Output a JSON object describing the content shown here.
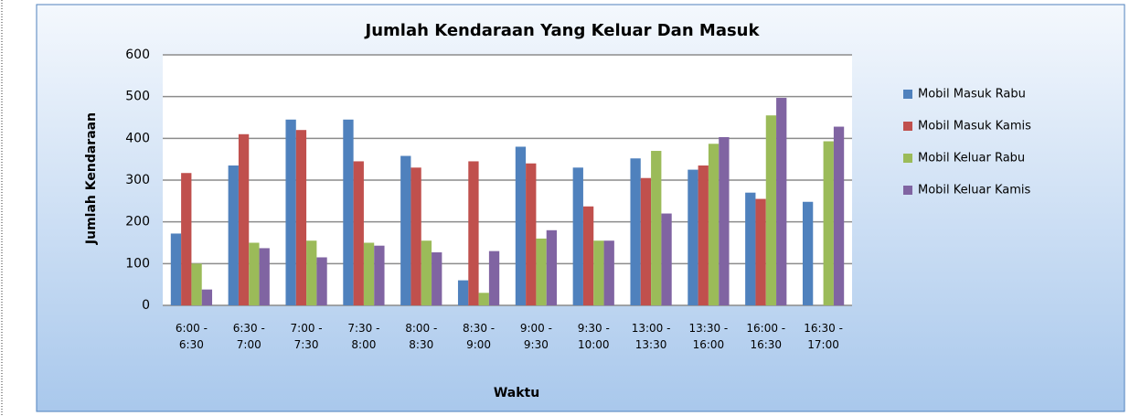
{
  "chart_data": {
    "type": "bar",
    "title": "Jumlah Kendaraan Yang Keluar Dan Masuk",
    "x_label": "Waktu",
    "y_label": "Jumlah Kendaraan",
    "categories": [
      "6:00 - 6:30",
      "6:30 - 7:00",
      "7:00 - 7:30",
      "7:30 - 8:00",
      "8:00 - 8:30",
      "8:30 - 9:00",
      "9:00 - 9:30",
      "9:30 - 10:00",
      "13:00 - 13:30",
      "13:30 - 16:00",
      "16:00 - 16:30",
      "16:30 - 17:00"
    ],
    "series": [
      {
        "name": "Mobil Masuk Rabu",
        "color": "#4f81bd",
        "values": [
          172,
          335,
          445,
          445,
          358,
          60,
          380,
          330,
          352,
          325,
          270,
          248
        ]
      },
      {
        "name": "Mobil Masuk Kamis",
        "color": "#c0504d",
        "values": [
          317,
          410,
          420,
          345,
          330,
          345,
          340,
          237,
          305,
          335,
          255,
          null
        ]
      },
      {
        "name": "Mobil Keluar Rabu",
        "color": "#9bbb59",
        "values": [
          100,
          150,
          155,
          150,
          155,
          30,
          160,
          155,
          370,
          387,
          455,
          393
        ]
      },
      {
        "name": "Mobil Keluar Kamis",
        "color": "#8064a2",
        "values": [
          38,
          137,
          115,
          143,
          127,
          130,
          180,
          155,
          220,
          403,
          497,
          428
        ]
      }
    ],
    "ylim": [
      0,
      600
    ],
    "yticks": [
      0,
      100,
      200,
      300,
      400,
      500,
      600
    ],
    "grid": true,
    "legend": "right"
  }
}
